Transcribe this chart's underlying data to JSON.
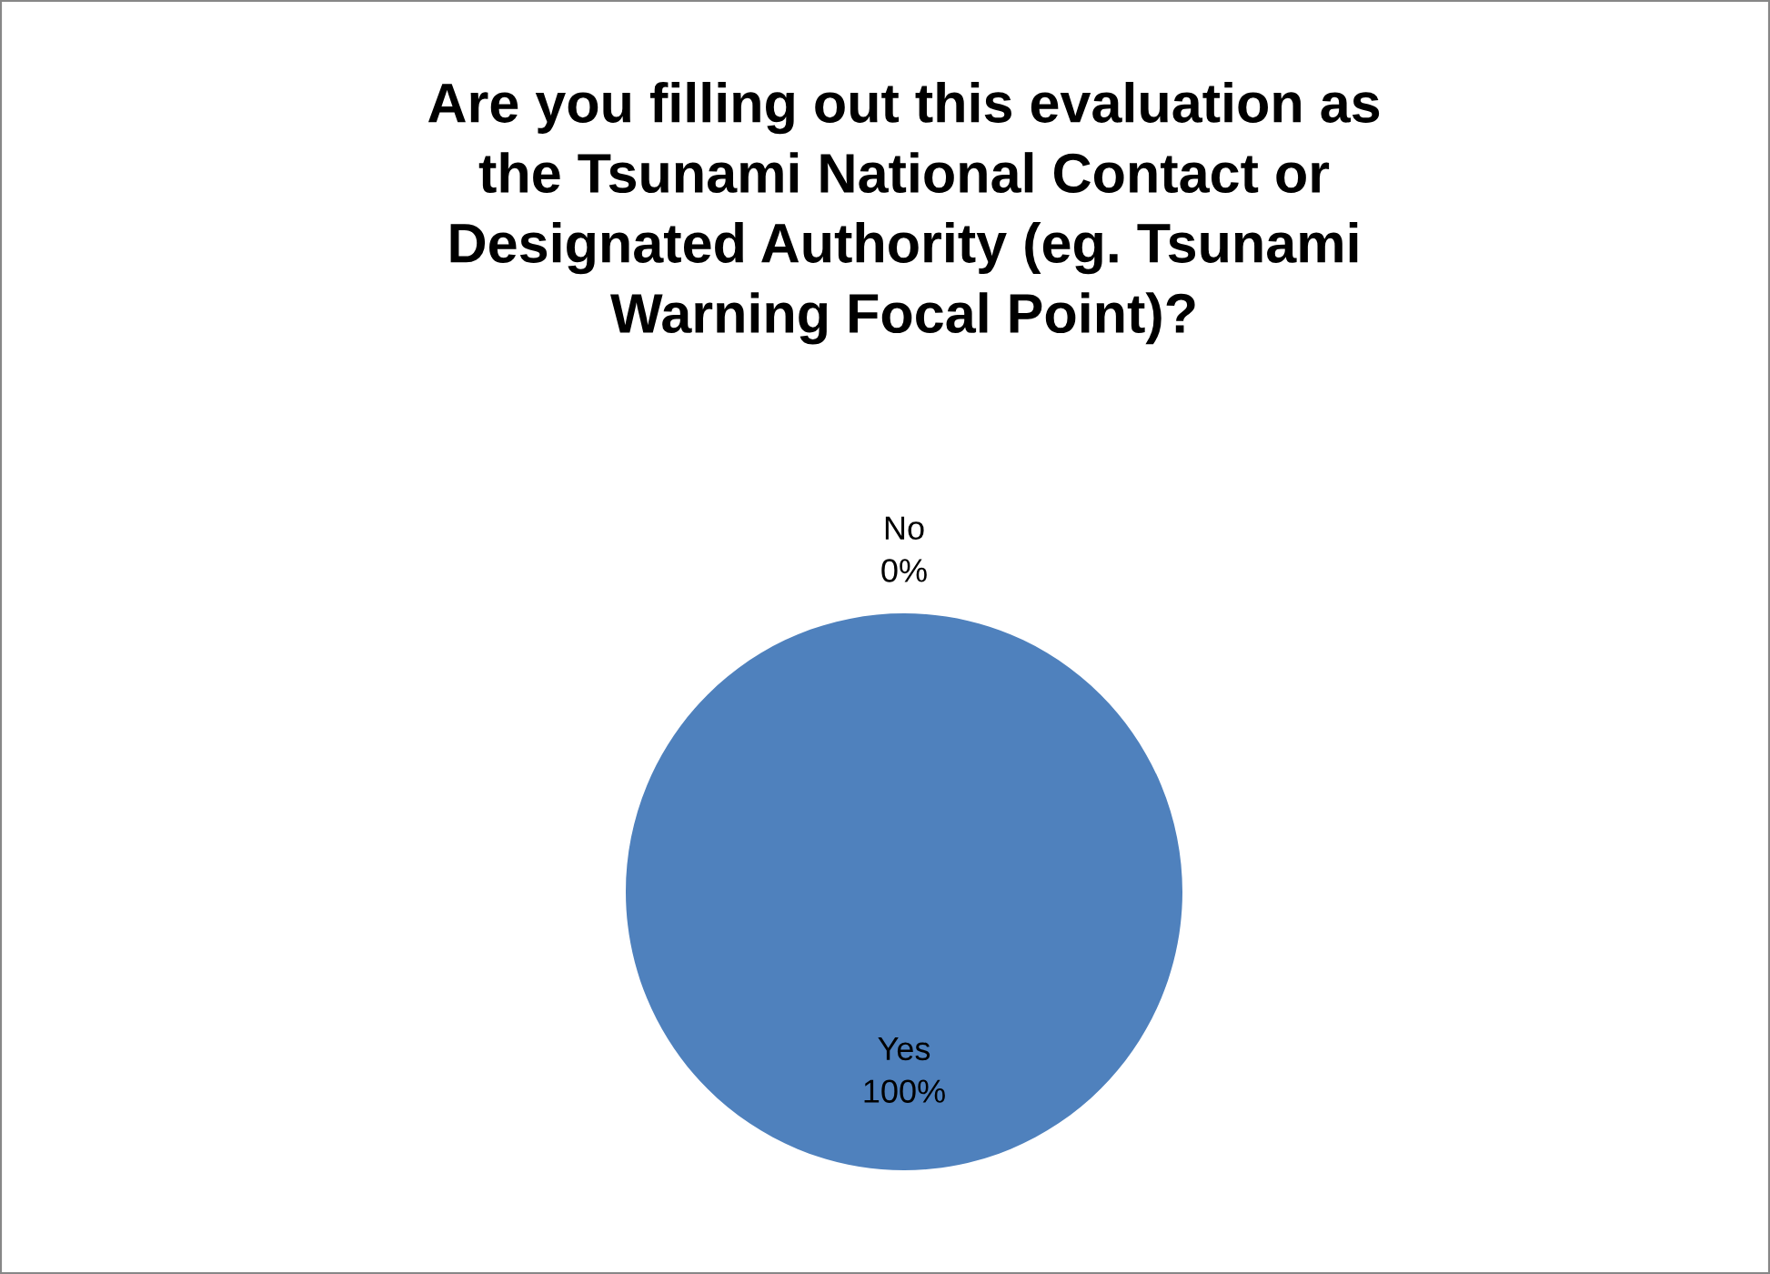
{
  "chart_data": {
    "type": "pie",
    "title": "Are you filling out this evaluation as\nthe Tsunami National Contact or\nDesignated Authority (eg. Tsunami\nWarning Focal Point)?",
    "categories": [
      "Yes",
      "No"
    ],
    "values": [
      100,
      0
    ],
    "colors": [
      "#4f81bd",
      "#c0504d"
    ],
    "value_labels": [
      "100%",
      "0%"
    ],
    "legend": false
  }
}
